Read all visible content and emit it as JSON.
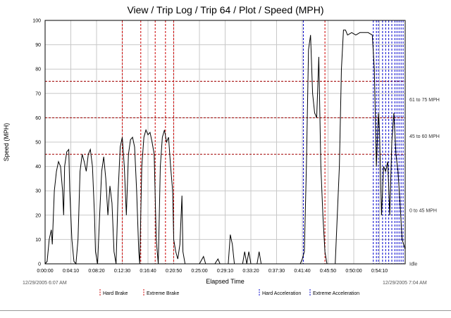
{
  "header": {
    "title": "View / Trip Log / Trip 64 / Plot / Speed (MPH)"
  },
  "chart_data": {
    "type": "line",
    "title": "View / Trip Log / Trip 64 / Plot / Speed (MPH)",
    "xlabel": "Elapsed Time",
    "ylabel": "Speed (MPH)",
    "xlim": [
      "0:00:00",
      "0:58:20"
    ],
    "ylim": [
      0,
      100
    ],
    "x_ticks": [
      "0:00:00",
      "0:04:10",
      "0:08:20",
      "0:12:30",
      "0:16:40",
      "0:20:50",
      "0:25:00",
      "0:29:10",
      "0:33:20",
      "0:37:30",
      "0:41:40",
      "0:45:50",
      "0:50:00",
      "0:54:10"
    ],
    "y_ticks": [
      0,
      10,
      20,
      30,
      40,
      50,
      60,
      70,
      80,
      90,
      100
    ],
    "grid": true,
    "start_timestamp": "12/29/2005 6:07 AM",
    "end_timestamp": "12/29/2005 7:04 AM",
    "speed_thresholds": [
      45,
      60,
      75
    ],
    "speed_bands": [
      {
        "label": "0 to 45 MPH",
        "speed": 22
      },
      {
        "label": "45 to 60 MPH",
        "speed": 52.5
      },
      {
        "label": "61 to 75 MPH",
        "speed": 67.5
      }
    ],
    "idle_label": "Idle",
    "series": [
      {
        "color": "#000000",
        "points": [
          [
            "0:00:00",
            0
          ],
          [
            "0:00:20",
            1
          ],
          [
            "0:00:40",
            10
          ],
          [
            "0:01:00",
            14
          ],
          [
            "0:01:10",
            8
          ],
          [
            "0:01:30",
            30
          ],
          [
            "0:01:50",
            38
          ],
          [
            "0:02:10",
            42
          ],
          [
            "0:02:30",
            40
          ],
          [
            "0:02:50",
            30
          ],
          [
            "0:03:00",
            20
          ],
          [
            "0:03:10",
            40
          ],
          [
            "0:03:30",
            46
          ],
          [
            "0:03:50",
            47
          ],
          [
            "0:04:00",
            30
          ],
          [
            "0:04:20",
            10
          ],
          [
            "0:04:40",
            1
          ],
          [
            "0:05:00",
            0
          ],
          [
            "0:05:20",
            10
          ],
          [
            "0:05:40",
            38
          ],
          [
            "0:06:00",
            45
          ],
          [
            "0:06:20",
            42
          ],
          [
            "0:06:40",
            38
          ],
          [
            "0:07:00",
            45
          ],
          [
            "0:07:20",
            47
          ],
          [
            "0:07:40",
            40
          ],
          [
            "0:08:00",
            20
          ],
          [
            "0:08:10",
            5
          ],
          [
            "0:08:30",
            0
          ],
          [
            "0:08:50",
            20
          ],
          [
            "0:09:10",
            38
          ],
          [
            "0:09:30",
            44
          ],
          [
            "0:09:50",
            35
          ],
          [
            "0:10:10",
            20
          ],
          [
            "0:10:30",
            32
          ],
          [
            "0:10:50",
            25
          ],
          [
            "0:11:10",
            5
          ],
          [
            "0:11:30",
            0
          ],
          [
            "0:11:50",
            30
          ],
          [
            "0:12:10",
            48
          ],
          [
            "0:12:30",
            52
          ],
          [
            "0:12:50",
            40
          ],
          [
            "0:13:10",
            20
          ],
          [
            "0:13:30",
            45
          ],
          [
            "0:13:50",
            51
          ],
          [
            "0:14:10",
            52
          ],
          [
            "0:14:30",
            48
          ],
          [
            "0:14:50",
            30
          ],
          [
            "0:15:10",
            5
          ],
          [
            "0:15:20",
            0
          ],
          [
            "0:15:40",
            40
          ],
          [
            "0:16:00",
            52
          ],
          [
            "0:16:20",
            55
          ],
          [
            "0:16:40",
            53
          ],
          [
            "0:17:00",
            54
          ],
          [
            "0:17:20",
            50
          ],
          [
            "0:17:40",
            45
          ],
          [
            "0:18:00",
            10
          ],
          [
            "0:18:20",
            0
          ],
          [
            "0:18:40",
            40
          ],
          [
            "0:19:00",
            52
          ],
          [
            "0:19:20",
            55
          ],
          [
            "0:19:40",
            50
          ],
          [
            "0:20:00",
            52
          ],
          [
            "0:20:20",
            40
          ],
          [
            "0:20:40",
            30
          ],
          [
            "0:20:50",
            10
          ],
          [
            "0:21:10",
            5
          ],
          [
            "0:21:30",
            2
          ],
          [
            "0:21:50",
            8
          ],
          [
            "0:22:10",
            28
          ],
          [
            "0:22:20",
            5
          ],
          [
            "0:22:40",
            0
          ],
          [
            "0:25:00",
            0
          ],
          [
            "0:25:40",
            3
          ],
          [
            "0:26:00",
            0
          ],
          [
            "0:27:30",
            0
          ],
          [
            "0:28:00",
            2
          ],
          [
            "0:28:20",
            0
          ],
          [
            "0:29:40",
            0
          ],
          [
            "0:30:00",
            12
          ],
          [
            "0:30:20",
            8
          ],
          [
            "0:30:40",
            0
          ],
          [
            "0:32:00",
            0
          ],
          [
            "0:32:20",
            5
          ],
          [
            "0:32:40",
            0
          ],
          [
            "0:33:00",
            5
          ],
          [
            "0:33:20",
            0
          ],
          [
            "0:34:20",
            0
          ],
          [
            "0:34:40",
            5
          ],
          [
            "0:35:00",
            0
          ],
          [
            "0:41:20",
            0
          ],
          [
            "0:41:40",
            2
          ],
          [
            "0:42:00",
            5
          ],
          [
            "0:42:20",
            40
          ],
          [
            "0:42:40",
            88
          ],
          [
            "0:43:00",
            94
          ],
          [
            "0:43:20",
            70
          ],
          [
            "0:43:40",
            62
          ],
          [
            "0:44:00",
            60
          ],
          [
            "0:44:20",
            85
          ],
          [
            "0:44:40",
            40
          ],
          [
            "0:45:00",
            20
          ],
          [
            "0:45:20",
            5
          ],
          [
            "0:45:40",
            0
          ],
          [
            "0:47:00",
            0
          ],
          [
            "0:47:40",
            40
          ],
          [
            "0:48:00",
            80
          ],
          [
            "0:48:20",
            96
          ],
          [
            "0:48:40",
            96
          ],
          [
            "0:49:00",
            94
          ],
          [
            "0:49:40",
            95
          ],
          [
            "0:50:20",
            94
          ],
          [
            "0:51:00",
            95
          ],
          [
            "0:51:40",
            95
          ],
          [
            "0:52:20",
            95
          ],
          [
            "0:53:00",
            94
          ],
          [
            "0:53:20",
            80
          ],
          [
            "0:53:40",
            40
          ],
          [
            "0:54:00",
            62
          ],
          [
            "0:54:10",
            55
          ],
          [
            "0:54:30",
            20
          ],
          [
            "0:54:50",
            40
          ],
          [
            "0:55:10",
            38
          ],
          [
            "0:55:30",
            42
          ],
          [
            "0:55:50",
            20
          ],
          [
            "0:56:10",
            50
          ],
          [
            "0:56:30",
            62
          ],
          [
            "0:56:50",
            45
          ],
          [
            "0:57:10",
            38
          ],
          [
            "0:57:30",
            25
          ],
          [
            "0:57:50",
            10
          ],
          [
            "0:58:20",
            6
          ]
        ]
      }
    ],
    "event_markers": {
      "hard_brake": {
        "color": "#cc0000",
        "times": [
          "0:12:30",
          "0:17:50",
          "0:20:50"
        ]
      },
      "extreme_brake": {
        "color": "#cc0000",
        "times": [
          "0:15:30",
          "0:19:30",
          "0:45:20"
        ]
      },
      "hard_acceleration": {
        "color": "#0000cc",
        "times": [
          "0:41:50",
          "0:53:10",
          "0:54:00",
          "0:55:10",
          "0:56:10",
          "0:57:00",
          "0:57:40"
        ]
      },
      "extreme_acceleration": {
        "color": "#0000cc",
        "times": [
          "0:53:40",
          "0:54:40",
          "0:55:40",
          "0:56:40",
          "0:57:20",
          "0:58:00"
        ]
      }
    },
    "legend": {
      "placement": "bottom",
      "items": [
        {
          "key": "hard_brake",
          "label": "Hard Brake",
          "color": "#cc0000"
        },
        {
          "key": "extreme_brake",
          "label": "Extreme Brake",
          "color": "#cc0000"
        },
        {
          "key": "hard_acceleration",
          "label": "Hard Acceleration",
          "color": "#0000cc"
        },
        {
          "key": "extreme_acceleration",
          "label": "Extreme Acceleration",
          "color": "#0000cc"
        }
      ]
    },
    "colors": {
      "grid": "#c8c8c8",
      "threshold": "#a00000",
      "line": "#000000"
    }
  }
}
